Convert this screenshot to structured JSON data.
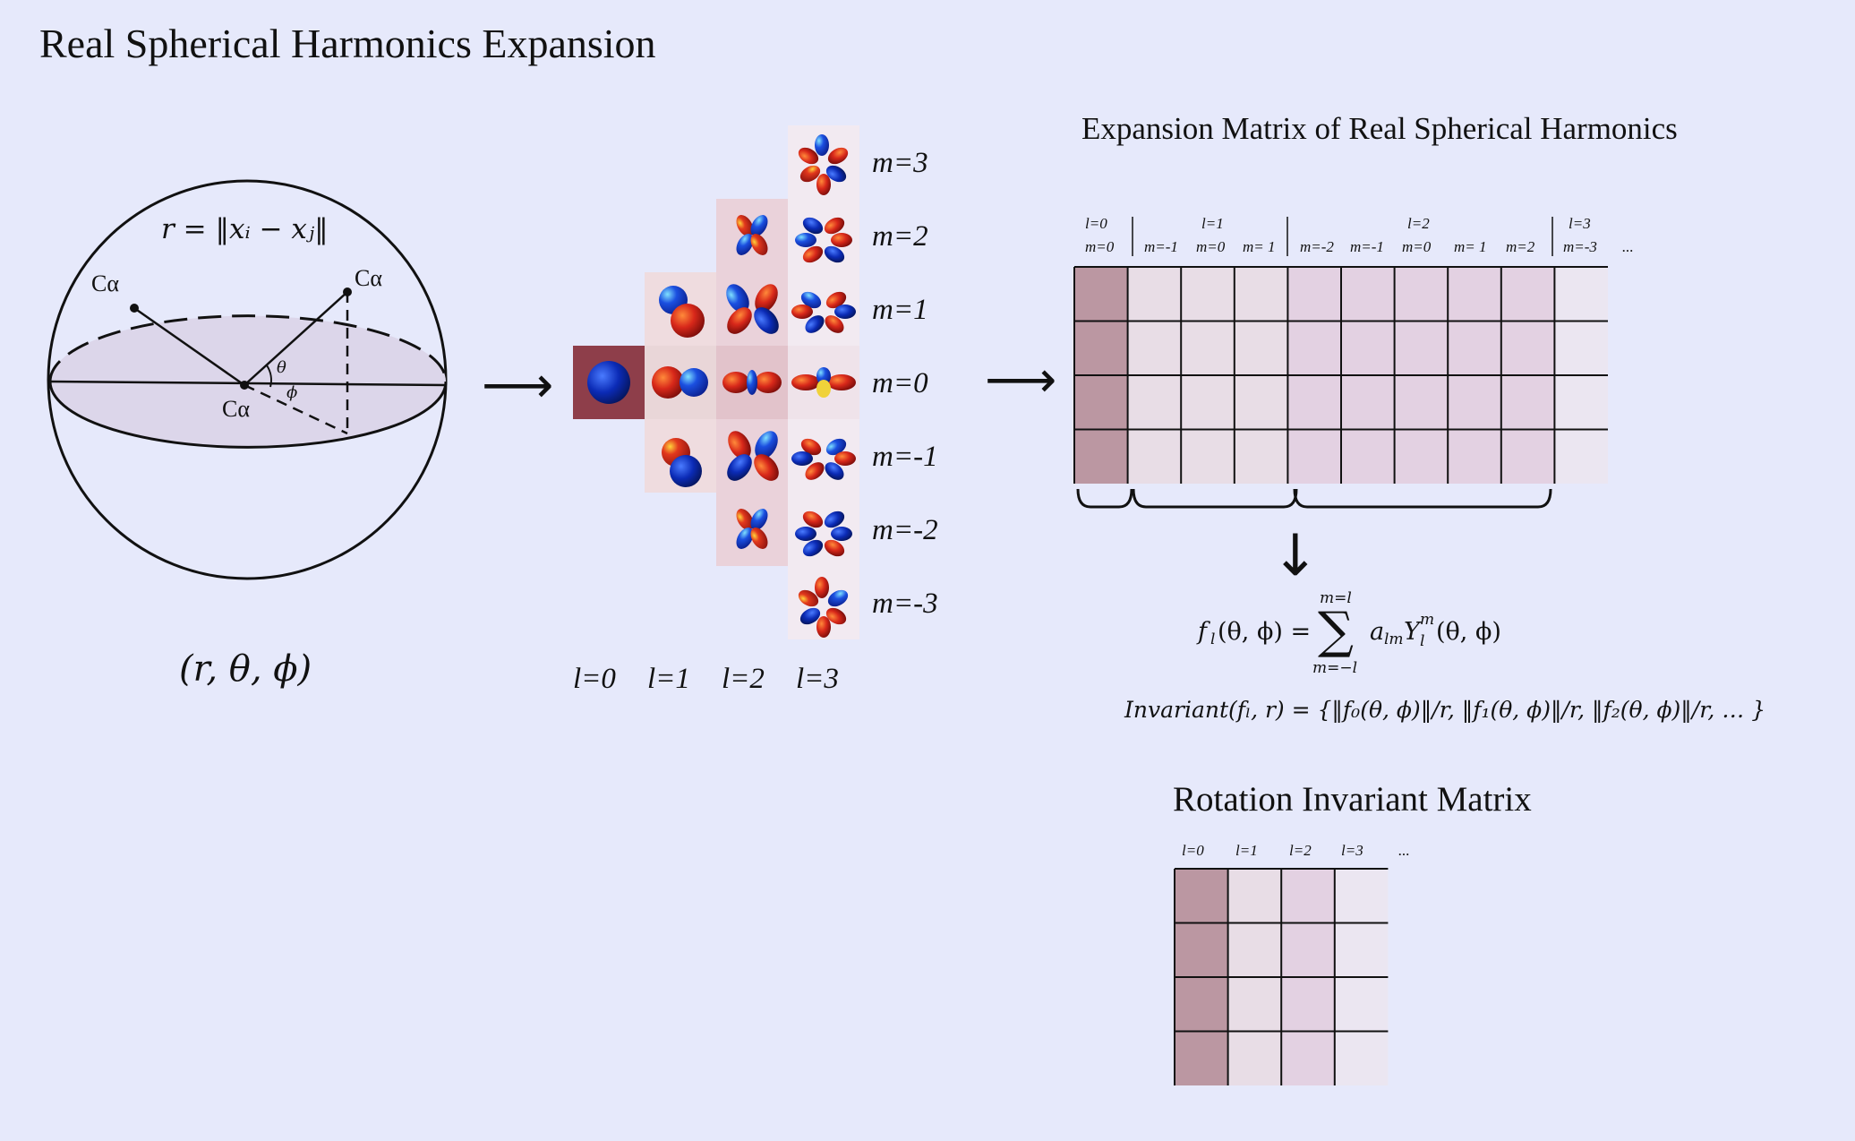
{
  "title": "Real Spherical Harmonics Expansion",
  "sphere": {
    "radius_formula": "r = ‖xᵢ − xⱼ‖",
    "atom_left": "Cα",
    "atom_right": "Cα",
    "atom_center": "Cα",
    "theta": "θ",
    "phi": "ϕ",
    "coords": "(r, θ, ϕ)"
  },
  "harmonics_grid": {
    "m_labels": [
      "m=3",
      "m=2",
      "m=1",
      "m=0",
      "m=-1",
      "m=-2",
      "m=-3"
    ],
    "l_labels": [
      "l=0",
      "l=1",
      "l=2",
      "l=3"
    ],
    "cell_colors": {
      "l0": "#8e3e4a",
      "l1": "#efdcdf",
      "l2": "#ead2da",
      "l3": "#f2eaf1"
    },
    "center_row_colors": {
      "l0": "#8e3e4a",
      "l1": "#e9d6d8",
      "l2": "#e2c3cb",
      "l3": "#efe3ea"
    }
  },
  "expansion_matrix": {
    "title": "Expansion Matrix of Real Spherical Harmonics",
    "headers": [
      {
        "l": "l=0",
        "m": "m=0"
      },
      {
        "l": "",
        "m": "m=-1"
      },
      {
        "l": "l=1",
        "m": "m=0"
      },
      {
        "l": "",
        "m": "m= 1"
      },
      {
        "l": "",
        "m": "m=-2"
      },
      {
        "l": "",
        "m": "m=-1"
      },
      {
        "l": "l=2",
        "m": "m=0"
      },
      {
        "l": "",
        "m": "m= 1"
      },
      {
        "l": "",
        "m": "m=2"
      },
      {
        "l": "l=3",
        "m": "m=-3"
      }
    ],
    "ellipsis": "...",
    "column_colors": [
      "#bb97a2",
      "#e8dde6",
      "#e8dde6",
      "#e8dde6",
      "#e3d1e2",
      "#e3d1e2",
      "#e3d1e2",
      "#e3d1e2",
      "#e3d1e2",
      "#ebe6f1"
    ]
  },
  "formula": {
    "lhs": "f",
    "lhs_sub": "l",
    "lhs_args": "(θ, ϕ) =",
    "sum_top": "m=l",
    "sum_bottom": "m=−l",
    "sum_symbol": "∑",
    "rhs": "a",
    "rhs_sub": "lm",
    "rhs_Y": "Y",
    "rhs_Y_sup": "m",
    "rhs_Y_sub": "l",
    "rhs_args": "(θ, ϕ)"
  },
  "invariant": "Invariant(fₗ, r) = {‖f₀(θ, ϕ)‖/r, ‖f₁(θ, ϕ)‖/r, ‖f₂(θ, ϕ)‖/r, … }",
  "rotation_matrix": {
    "title": "Rotation Invariant Matrix",
    "headers": [
      "l=0",
      "l=1",
      "l=2",
      "l=3"
    ],
    "ellipsis": "...",
    "column_colors": [
      "#bb97a2",
      "#e8dde6",
      "#e3d1e2",
      "#ebe6f1"
    ]
  },
  "arrows": {
    "right": "⟶",
    "down": "↓"
  }
}
